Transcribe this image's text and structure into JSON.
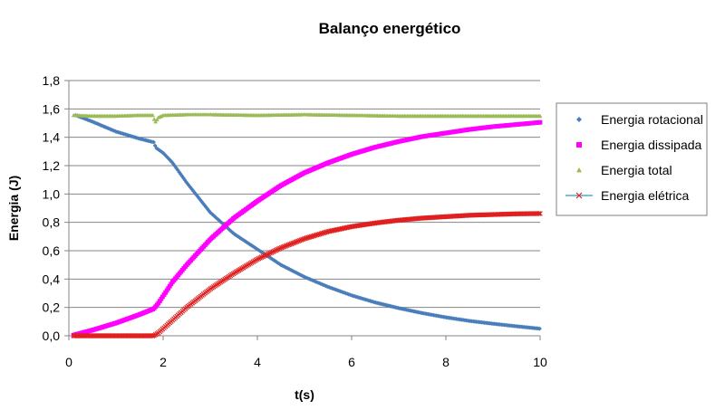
{
  "chart_data": {
    "type": "scatter",
    "title": "Balanço energético",
    "xlabel": "t(s)",
    "ylabel": "Energia (J)",
    "xlim": [
      0,
      10
    ],
    "ylim": [
      0,
      1.8
    ],
    "x_ticks": [
      "0",
      "2",
      "4",
      "6",
      "8",
      "10"
    ],
    "y_ticks": [
      "0,0",
      "0,2",
      "0,4",
      "0,6",
      "0,8",
      "1,0",
      "1,2",
      "1,4",
      "1,6",
      "1,8"
    ],
    "grid": "horizontal",
    "legend_position": "right",
    "series": [
      {
        "name": "Energia rotacional",
        "color": "#4a7ebb",
        "marker": "diamond",
        "points": [
          [
            0.15,
            1.555
          ],
          [
            0.5,
            1.51
          ],
          [
            1.0,
            1.44
          ],
          [
            1.5,
            1.39
          ],
          [
            1.8,
            1.365
          ],
          [
            1.85,
            1.325
          ],
          [
            2.0,
            1.29
          ],
          [
            2.2,
            1.22
          ],
          [
            2.5,
            1.08
          ],
          [
            3.0,
            0.87
          ],
          [
            3.5,
            0.72
          ],
          [
            4.0,
            0.61
          ],
          [
            4.5,
            0.5
          ],
          [
            5.0,
            0.415
          ],
          [
            5.5,
            0.345
          ],
          [
            6.0,
            0.285
          ],
          [
            6.5,
            0.235
          ],
          [
            7.0,
            0.195
          ],
          [
            7.5,
            0.16
          ],
          [
            8.0,
            0.13
          ],
          [
            8.5,
            0.105
          ],
          [
            9.0,
            0.085
          ],
          [
            9.5,
            0.067
          ],
          [
            10.0,
            0.05
          ]
        ]
      },
      {
        "name": "Energia dissipada",
        "color": "#ff00ff",
        "marker": "square",
        "points": [
          [
            0.1,
            0.005
          ],
          [
            0.5,
            0.04
          ],
          [
            1.0,
            0.09
          ],
          [
            1.5,
            0.15
          ],
          [
            1.8,
            0.19
          ],
          [
            1.9,
            0.23
          ],
          [
            2.2,
            0.38
          ],
          [
            2.5,
            0.5
          ],
          [
            3.0,
            0.68
          ],
          [
            3.5,
            0.83
          ],
          [
            4.0,
            0.95
          ],
          [
            4.5,
            1.06
          ],
          [
            5.0,
            1.15
          ],
          [
            5.5,
            1.22
          ],
          [
            6.0,
            1.28
          ],
          [
            6.5,
            1.33
          ],
          [
            7.0,
            1.37
          ],
          [
            7.5,
            1.405
          ],
          [
            8.0,
            1.43
          ],
          [
            8.5,
            1.455
          ],
          [
            9.0,
            1.475
          ],
          [
            9.5,
            1.49
          ],
          [
            10.0,
            1.505
          ]
        ]
      },
      {
        "name": "Energia total",
        "color": "#9bbb59",
        "marker": "triangle",
        "points": [
          [
            0.1,
            1.555
          ],
          [
            0.5,
            1.55
          ],
          [
            1.0,
            1.55
          ],
          [
            1.5,
            1.555
          ],
          [
            1.8,
            1.555
          ],
          [
            1.82,
            1.5
          ],
          [
            1.9,
            1.54
          ],
          [
            2.0,
            1.555
          ],
          [
            2.5,
            1.56
          ],
          [
            3.0,
            1.56
          ],
          [
            4.0,
            1.555
          ],
          [
            5.0,
            1.56
          ],
          [
            6.0,
            1.555
          ],
          [
            7.0,
            1.55
          ],
          [
            8.0,
            1.55
          ],
          [
            9.0,
            1.55
          ],
          [
            10.0,
            1.55
          ]
        ]
      },
      {
        "name": "Energia elétrica",
        "color": "#e02020",
        "line_color": "#4bacc6",
        "marker": "x",
        "points": [
          [
            0.1,
            0.0
          ],
          [
            1.0,
            0.0
          ],
          [
            1.8,
            0.0
          ],
          [
            1.9,
            0.02
          ],
          [
            2.2,
            0.11
          ],
          [
            2.5,
            0.2
          ],
          [
            3.0,
            0.33
          ],
          [
            3.5,
            0.44
          ],
          [
            4.0,
            0.54
          ],
          [
            4.5,
            0.62
          ],
          [
            5.0,
            0.685
          ],
          [
            5.5,
            0.735
          ],
          [
            6.0,
            0.77
          ],
          [
            6.5,
            0.795
          ],
          [
            7.0,
            0.815
          ],
          [
            7.5,
            0.83
          ],
          [
            8.0,
            0.84
          ],
          [
            8.5,
            0.85
          ],
          [
            9.0,
            0.855
          ],
          [
            9.5,
            0.86
          ],
          [
            10.0,
            0.862
          ]
        ]
      }
    ]
  }
}
